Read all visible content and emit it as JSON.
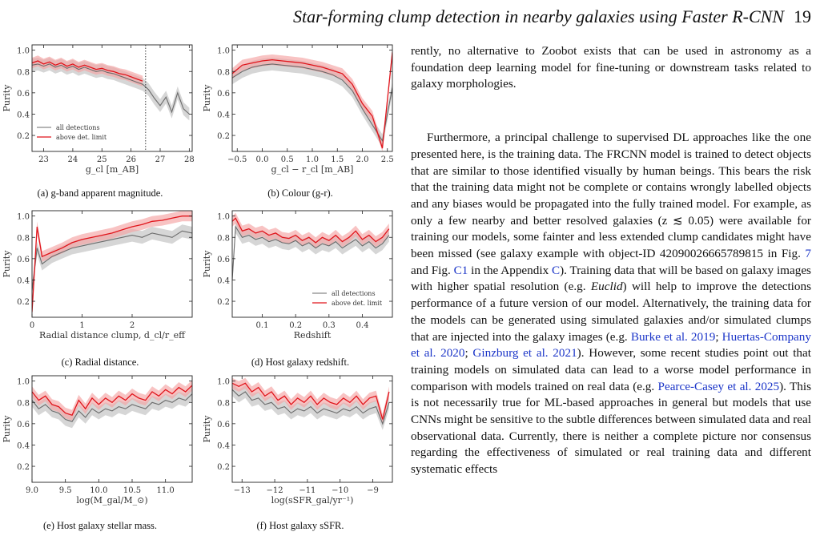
{
  "header": {
    "title": "Star-forming clump detection in nearby galaxies using Faster R-CNN",
    "page_number": "19"
  },
  "figure": {
    "legend": {
      "all": "all detections",
      "above": "above det. limit"
    },
    "colors": {
      "all_line": "#6b6b6b",
      "all_band": "#c8c8c8",
      "above_line": "#e0141b",
      "above_band": "#f4a3a3"
    }
  },
  "chart_data": [
    {
      "type": "line",
      "caption": "(a) g-band apparent magnitude.",
      "ylabel": "Purity",
      "xlabel": "g_cl [m_AB]",
      "xlim": [
        22.6,
        28.1
      ],
      "ylim": [
        0.05,
        1.05
      ],
      "xticks": [
        "23",
        "24",
        "25",
        "26",
        "27",
        "28"
      ],
      "yticks": [
        "0.2",
        "0.4",
        "0.6",
        "0.8",
        "1.0"
      ],
      "legend_position": "lower-left",
      "vline": 26.5,
      "series": [
        {
          "name": "all detections",
          "x": [
            22.6,
            22.8,
            23.0,
            23.2,
            23.4,
            23.6,
            23.8,
            24.0,
            24.2,
            24.4,
            24.6,
            24.8,
            25.0,
            25.2,
            25.4,
            25.6,
            25.8,
            26.0,
            26.2,
            26.4,
            26.6,
            26.8,
            27.0,
            27.2,
            27.4,
            27.6,
            27.8,
            28.0
          ],
          "y": [
            0.86,
            0.87,
            0.85,
            0.87,
            0.84,
            0.86,
            0.83,
            0.85,
            0.82,
            0.84,
            0.82,
            0.8,
            0.81,
            0.79,
            0.78,
            0.76,
            0.74,
            0.72,
            0.7,
            0.68,
            0.63,
            0.55,
            0.48,
            0.56,
            0.42,
            0.6,
            0.45,
            0.4
          ]
        },
        {
          "name": "above det. limit",
          "x": [
            22.6,
            22.8,
            23.0,
            23.2,
            23.4,
            23.6,
            23.8,
            24.0,
            24.2,
            24.4,
            24.6,
            24.8,
            25.0,
            25.2,
            25.4,
            25.6,
            25.8,
            26.0,
            26.2,
            26.4
          ],
          "y": [
            0.88,
            0.9,
            0.87,
            0.89,
            0.86,
            0.88,
            0.85,
            0.87,
            0.84,
            0.86,
            0.84,
            0.82,
            0.83,
            0.81,
            0.8,
            0.78,
            0.77,
            0.75,
            0.73,
            0.71
          ]
        }
      ]
    },
    {
      "type": "line",
      "caption": "(b) Colour (g-r).",
      "ylabel": "Purity",
      "xlabel": "g_cl − r_cl [m_AB]",
      "xlim": [
        -0.6,
        2.6
      ],
      "ylim": [
        0.05,
        1.05
      ],
      "xticks": [
        "−0.5",
        "0.0",
        "0.5",
        "1.0",
        "1.5",
        "2.0",
        "2.5"
      ],
      "yticks": [
        "0.2",
        "0.4",
        "0.6",
        "0.8",
        "1.0"
      ],
      "series": [
        {
          "name": "all detections",
          "x": [
            -0.6,
            -0.4,
            -0.2,
            0.0,
            0.2,
            0.4,
            0.6,
            0.8,
            1.0,
            1.2,
            1.4,
            1.6,
            1.8,
            2.0,
            2.2,
            2.4,
            2.6
          ],
          "y": [
            0.74,
            0.8,
            0.84,
            0.86,
            0.87,
            0.86,
            0.85,
            0.84,
            0.82,
            0.8,
            0.77,
            0.72,
            0.62,
            0.45,
            0.3,
            0.15,
            0.65
          ]
        },
        {
          "name": "above det. limit",
          "x": [
            -0.6,
            -0.4,
            -0.2,
            0.0,
            0.2,
            0.4,
            0.6,
            0.8,
            1.0,
            1.2,
            1.4,
            1.6,
            1.8,
            2.0,
            2.2,
            2.4,
            2.6
          ],
          "y": [
            0.78,
            0.86,
            0.88,
            0.9,
            0.91,
            0.9,
            0.89,
            0.88,
            0.86,
            0.84,
            0.81,
            0.78,
            0.68,
            0.5,
            0.38,
            0.08,
            0.98
          ]
        }
      ]
    },
    {
      "type": "line",
      "caption": "(c) Radial distance.",
      "ylabel": "Purity",
      "xlabel": "Radial distance clump, d_cl/r_eff",
      "xlim": [
        0.0,
        3.2
      ],
      "ylim": [
        0.05,
        1.05
      ],
      "xticks": [
        "0",
        "1",
        "2"
      ],
      "yticks": [
        "0.2",
        "0.4",
        "0.6",
        "0.8",
        "1.0"
      ],
      "series": [
        {
          "name": "all detections",
          "x": [
            0.0,
            0.1,
            0.2,
            0.4,
            0.6,
            0.8,
            1.0,
            1.2,
            1.4,
            1.6,
            1.8,
            2.0,
            2.2,
            2.4,
            2.6,
            2.8,
            3.0,
            3.2
          ],
          "y": [
            0.3,
            0.7,
            0.55,
            0.62,
            0.66,
            0.7,
            0.72,
            0.74,
            0.76,
            0.78,
            0.8,
            0.82,
            0.8,
            0.84,
            0.82,
            0.8,
            0.86,
            0.84
          ]
        },
        {
          "name": "above det. limit",
          "x": [
            0.0,
            0.1,
            0.2,
            0.4,
            0.6,
            0.8,
            1.0,
            1.2,
            1.4,
            1.6,
            1.8,
            2.0,
            2.2,
            2.4,
            2.6,
            2.8,
            3.0,
            3.2
          ],
          "y": [
            0.1,
            0.9,
            0.62,
            0.66,
            0.7,
            0.75,
            0.78,
            0.8,
            0.82,
            0.84,
            0.87,
            0.9,
            0.92,
            0.95,
            0.96,
            0.98,
            1.0,
            1.0
          ]
        }
      ]
    },
    {
      "type": "line",
      "caption": "(d) Host galaxy redshift.",
      "ylabel": "Purity",
      "xlabel": "Redshift",
      "xlim": [
        0.01,
        0.49
      ],
      "ylim": [
        0.05,
        1.05
      ],
      "xticks": [
        "0.1",
        "0.2",
        "0.3",
        "0.4"
      ],
      "yticks": [
        "0.2",
        "0.4",
        "0.6",
        "0.8",
        "1.0"
      ],
      "legend_position": "lower-right",
      "series": [
        {
          "name": "all detections",
          "x": [
            0.01,
            0.02,
            0.04,
            0.06,
            0.08,
            0.1,
            0.12,
            0.14,
            0.16,
            0.18,
            0.2,
            0.22,
            0.24,
            0.26,
            0.28,
            0.3,
            0.32,
            0.34,
            0.36,
            0.38,
            0.4,
            0.42,
            0.44,
            0.46,
            0.48
          ],
          "y": [
            0.4,
            0.9,
            0.8,
            0.82,
            0.78,
            0.8,
            0.76,
            0.78,
            0.75,
            0.74,
            0.77,
            0.72,
            0.75,
            0.7,
            0.74,
            0.72,
            0.76,
            0.7,
            0.74,
            0.78,
            0.72,
            0.76,
            0.7,
            0.74,
            0.82
          ]
        },
        {
          "name": "above det. limit",
          "x": [
            0.01,
            0.02,
            0.04,
            0.06,
            0.08,
            0.1,
            0.12,
            0.14,
            0.16,
            0.18,
            0.2,
            0.22,
            0.24,
            0.26,
            0.28,
            0.3,
            0.32,
            0.34,
            0.36,
            0.38,
            0.4,
            0.42,
            0.44,
            0.46,
            0.48
          ],
          "y": [
            0.95,
            0.98,
            0.86,
            0.88,
            0.84,
            0.86,
            0.82,
            0.84,
            0.8,
            0.79,
            0.82,
            0.77,
            0.8,
            0.75,
            0.8,
            0.77,
            0.82,
            0.76,
            0.8,
            0.86,
            0.78,
            0.82,
            0.76,
            0.8,
            0.88
          ]
        }
      ]
    },
    {
      "type": "line",
      "caption": "(e) Host galaxy stellar mass.",
      "ylabel": "Purity",
      "xlabel": "log(M_gal/M_⊙)",
      "xlim": [
        9.0,
        11.4
      ],
      "ylim": [
        0.05,
        1.05
      ],
      "xticks": [
        "9.0",
        "9.5",
        "10.0",
        "10.5",
        "11.0"
      ],
      "yticks": [
        "0.2",
        "0.4",
        "0.6",
        "0.8",
        "1.0"
      ],
      "series": [
        {
          "name": "all detections",
          "x": [
            9.0,
            9.1,
            9.2,
            9.3,
            9.4,
            9.5,
            9.6,
            9.7,
            9.8,
            9.9,
            10.0,
            10.1,
            10.2,
            10.3,
            10.4,
            10.5,
            10.6,
            10.7,
            10.8,
            10.9,
            11.0,
            11.1,
            11.2,
            11.3,
            11.4
          ],
          "y": [
            0.82,
            0.74,
            0.78,
            0.72,
            0.7,
            0.64,
            0.62,
            0.72,
            0.66,
            0.74,
            0.7,
            0.74,
            0.72,
            0.76,
            0.74,
            0.78,
            0.76,
            0.74,
            0.8,
            0.78,
            0.82,
            0.8,
            0.84,
            0.82,
            0.88
          ]
        },
        {
          "name": "above det. limit",
          "x": [
            9.0,
            9.1,
            9.2,
            9.3,
            9.4,
            9.5,
            9.6,
            9.7,
            9.8,
            9.9,
            10.0,
            10.1,
            10.2,
            10.3,
            10.4,
            10.5,
            10.6,
            10.7,
            10.8,
            10.9,
            11.0,
            11.1,
            11.2,
            11.3,
            11.4
          ],
          "y": [
            0.9,
            0.82,
            0.86,
            0.78,
            0.76,
            0.7,
            0.68,
            0.82,
            0.74,
            0.84,
            0.78,
            0.84,
            0.8,
            0.86,
            0.82,
            0.88,
            0.84,
            0.82,
            0.9,
            0.86,
            0.92,
            0.88,
            0.94,
            0.9,
            0.96
          ]
        }
      ]
    },
    {
      "type": "line",
      "caption": "(f) Host galaxy sSFR.",
      "ylabel": "Purity",
      "xlabel": "log(sSFR_gal/yr⁻¹)",
      "xlim": [
        -13.3,
        -8.4
      ],
      "ylim": [
        0.05,
        1.05
      ],
      "xticks": [
        "−13",
        "−12",
        "−11",
        "−10",
        "−9"
      ],
      "yticks": [
        "0.2",
        "0.4",
        "0.6",
        "0.8",
        "1.0"
      ],
      "series": [
        {
          "name": "all detections",
          "x": [
            -13.3,
            -13.1,
            -12.9,
            -12.7,
            -12.5,
            -12.3,
            -12.1,
            -11.9,
            -11.7,
            -11.5,
            -11.3,
            -11.1,
            -10.9,
            -10.7,
            -10.5,
            -10.3,
            -10.1,
            -9.9,
            -9.7,
            -9.5,
            -9.3,
            -9.1,
            -8.9,
            -8.7,
            -8.5
          ],
          "y": [
            0.92,
            0.86,
            0.9,
            0.82,
            0.84,
            0.78,
            0.8,
            0.74,
            0.76,
            0.7,
            0.74,
            0.72,
            0.76,
            0.7,
            0.74,
            0.72,
            0.7,
            0.74,
            0.72,
            0.76,
            0.7,
            0.74,
            0.76,
            0.6,
            0.8
          ]
        },
        {
          "name": "above det. limit",
          "x": [
            -13.3,
            -13.1,
            -12.9,
            -12.7,
            -12.5,
            -12.3,
            -12.1,
            -11.9,
            -11.7,
            -11.5,
            -11.3,
            -11.1,
            -10.9,
            -10.7,
            -10.5,
            -10.3,
            -10.1,
            -9.9,
            -9.7,
            -9.5,
            -9.3,
            -9.1,
            -8.9,
            -8.7,
            -8.5
          ],
          "y": [
            0.98,
            0.95,
            0.98,
            0.9,
            0.94,
            0.86,
            0.9,
            0.82,
            0.86,
            0.78,
            0.84,
            0.8,
            0.86,
            0.78,
            0.84,
            0.8,
            0.78,
            0.84,
            0.8,
            0.86,
            0.78,
            0.84,
            0.86,
            0.64,
            0.9
          ]
        }
      ]
    }
  ],
  "text": {
    "p1": "rently, no alternative to Zoobot exists that can be used in astronomy as a foundation deep learning model for fine-tuning or downstream tasks related to galaxy morphologies.",
    "p2_a": "Furthermore, a principal challenge to supervised DL approaches like the one presented here, is the training data. The FRCNN model is trained to detect objects that are similar to those identified visually by human beings. This bears the risk that the training data might not be complete or contains wrongly labelled objects and any biases would be propagated into the fully trained model. For example, as only a few nearby and better resolved galaxies (z ≲ 0.05) were available for training our models, some fainter and less extended clump candidates might have been missed (see galaxy example with object-ID 42090026665789815 in Fig. ",
    "ref_fig7": "7",
    "p2_b": " and Fig. ",
    "ref_figC1": "C1",
    "p2_c": " in the Appendix ",
    "ref_appC": "C",
    "p2_d": "). Training data that will be based on galaxy images with higher spatial resolution (e.g. ",
    "euclid": "Euclid",
    "p2_e": ") will help to improve the detections performance of a future version of our model. Alternatively, the training data for the models can be generated using simulated galaxies and/or simulated clumps that are injected into the galaxy images (e.g. ",
    "ref_burke": "Burke et al. 2019",
    "sep1": "; ",
    "ref_huertas": "Huertas-Company et al. 2020",
    "sep2": "; ",
    "ref_ginzburg": "Ginzburg et al. 2021",
    "p2_f": "). However, some recent studies point out that training models on simulated data can lead to a worse model performance in comparison with models trained on real data (e.g. ",
    "ref_pearce": "Pearce-Casey et al. 2025",
    "p2_g": "). This is not necessarily true for ML-based approaches in general but models that use CNNs might be sensitive to the subtle differences between simulated data and real observational data. Currently, there is neither a complete picture nor consensus regarding the effectiveness of simulated or real training data and different systematic effects"
  }
}
